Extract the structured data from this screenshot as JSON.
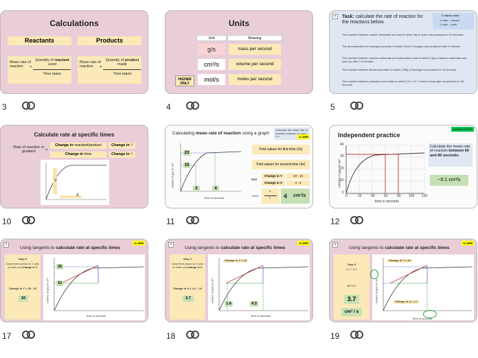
{
  "slides": [
    {
      "num": "3",
      "title": "Calculations",
      "reactants": "Reactants",
      "products": "Products",
      "mean_rate": "Mean rate of reaction",
      "equals": "=",
      "qty_reactant_1": "Quantity of",
      "qty_reactant_bold": "reactant",
      "qty_reactant_2": "used",
      "qty_product_1": "Quantity of",
      "qty_product_bold": "product",
      "qty_product_2": "made",
      "time_taken": "Time taken"
    },
    {
      "num": "4",
      "title": "Units",
      "col_unit": "Unit",
      "col_meaning": "Meaning",
      "rows": [
        {
          "unit": "g/s",
          "meaning": "mass per second"
        },
        {
          "unit": "cm³/s",
          "meaning": "volume per second"
        },
        {
          "unit": "mol/s",
          "meaning": "moles per second"
        }
      ],
      "higher_only": "HIGHER ONLY"
    },
    {
      "num": "5",
      "task_label": "Task:",
      "task": "calculate the rate of reaction for the reactions below.",
      "marks_title": "2 marks each",
      "marks_1": "1 mark – answer",
      "marks_2": "1 mark – units",
      "items": [
        "The reaction between sodium thiosulfate and acid in which 6g of sulfur was produced in 24 seconds.",
        "The decomposition of hydrogen peroxide in which 15cm³ of oxygen was produced after 6 minutes.",
        "The reaction between calcium carbonate and hydrochloric acid in which 0.6g of calcium carbonate was used up after 2.5 minutes.",
        "The reaction between lithium and water in which 0.85g of hydrogen is produced in 10 seconds.",
        "The reaction between potassium and water in which 2.5 × 10⁻⁴ moles of hydrogen is produced in 30 seconds."
      ]
    },
    {
      "num": "10",
      "title": "Calculate rate at specific times",
      "rate_label": "Rate of reaction or gradient",
      "equals": "=",
      "change_top_1": "Change in",
      "change_top_2": "reactant/product",
      "change_bottom_1": "Change in",
      "change_bottom_2": "time",
      "change_y_1": "Change in",
      "change_y_2": "Y",
      "change_x_1": "Change in",
      "change_x_2": "X",
      "axis_y": "Y",
      "axis_x": "X"
    },
    {
      "num": "11",
      "title_1": "Calculating",
      "title_bold": "mean rate of reaction",
      "title_2": "using a graph",
      "note": "Calculate the mean rate of reaction between 2 s and 4 s",
      "badge": "C/ ARR",
      "label_23": "23",
      "label_15": "15",
      "label_2": "2",
      "label_4": "4",
      "step1": "Find values for first time (2s)",
      "step2": "Find values for second time (4s)",
      "row_y_label": "Change in Y",
      "row_y_val": "23 - 15",
      "row_x_label": "Change in X",
      "row_x_val": "4 - 2",
      "rate_label": "RoR",
      "rate_eq": "=",
      "rate_num": "8",
      "rate_den": "2",
      "result": "4",
      "result_unit": "cm³/s",
      "ylabel": "volume of gas in cm³",
      "xlabel": "Time in seconds"
    },
    {
      "num": "12",
      "title": "Independent practice",
      "badge": "INDEPENDENT",
      "question_1": "Calculate the mean rate of reaction",
      "question_bold": "between 60 and 80 seconds.",
      "answer": "~0.1 cm³/s",
      "ylabel": "volume of gas in cm³",
      "xlabel": "time in seconds",
      "yticks": [
        "0",
        "10",
        "20",
        "30",
        "40"
      ],
      "xticks": [
        "0",
        "20",
        "40",
        "60",
        "80",
        "100",
        "120"
      ]
    },
    {
      "num": "17",
      "title_1": "Using tangents to",
      "title_bold": "calculate rate at specific times",
      "badge": "C/ ARR",
      "step": "Step 3",
      "step_text_1": "Draw lines across to Y axis to work out",
      "step_text_bold": "change in Y",
      "change": "Change in Y = 25 - 15",
      "result": "10",
      "label_25": "25",
      "label_15": "15",
      "ylabel": "volume of gas in cm³",
      "xlabel": "Time in seconds"
    },
    {
      "num": "18",
      "title_1": "Using tangents to",
      "title_bold": "calculate rate at specific times",
      "badge": "C/ ARR",
      "step": "Step 4",
      "step_text_1": "Draw lines down to X axis to work out",
      "step_text_bold": "change in X",
      "change": "Change in X = 4.3 - 1.6",
      "result": "2.7",
      "change_top": "Change in Y = 10",
      "label_16": "1.6",
      "label_43": "4.3",
      "ylabel": "volume of gas in cm³",
      "xlabel": "Time in seconds"
    },
    {
      "num": "19",
      "title_1": "Using tangents to",
      "title_bold": "calculate rate at specific times",
      "badge": "C/ ARR",
      "step": "Step 5",
      "step_text": "Δ Y / Δ X",
      "fraction": "10 / 2.7",
      "result": "3.7",
      "unit": "cm³ / s",
      "change_top": "Change in Y = 10",
      "change_bottom": "Change in X = 2.7",
      "ylabel": "volume of gas in cm³",
      "xlabel": "Time in seconds"
    }
  ]
}
